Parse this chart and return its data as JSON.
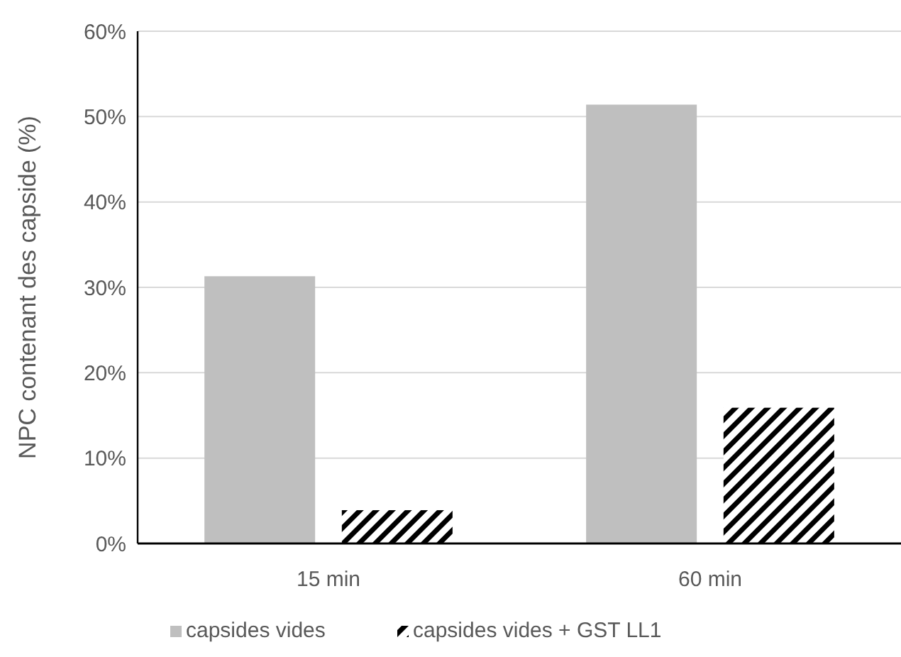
{
  "chart_data": {
    "type": "bar",
    "ylabel": "NPC contenant des capside (%)",
    "categories": [
      "15 min",
      "60 min"
    ],
    "series": [
      {
        "name": "capsides vides",
        "color": "#bfbfbf",
        "values": [
          31.3,
          51.4
        ]
      },
      {
        "name": "capsides vides + GST LL1",
        "color": "#000000",
        "values": [
          3.9,
          15.9
        ]
      }
    ],
    "ylim": [
      0,
      60
    ],
    "yticks": [
      {
        "value": 0,
        "label": "0%"
      },
      {
        "value": 10,
        "label": "10%"
      },
      {
        "value": 20,
        "label": "20%"
      },
      {
        "value": 30,
        "label": "30%"
      },
      {
        "value": 40,
        "label": "40%"
      },
      {
        "value": 50,
        "label": "50%"
      },
      {
        "value": 60,
        "label": "60%"
      }
    ],
    "grid": "y",
    "legend": "bottom"
  }
}
